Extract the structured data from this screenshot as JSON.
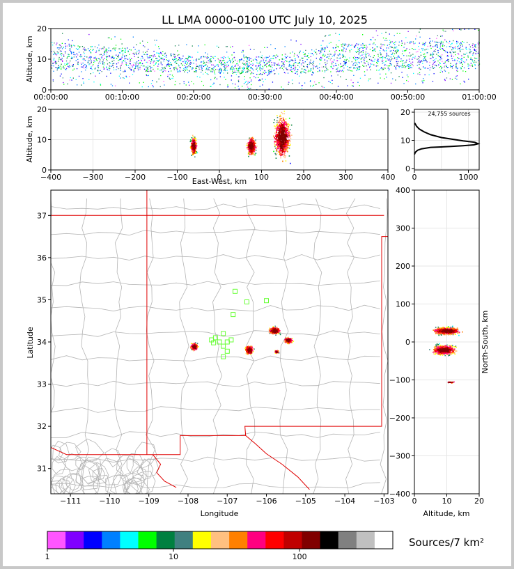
{
  "title": "LL LMA 0000-0100 UTC July 10, 2025",
  "colorbar": {
    "label": "Sources/7 km²",
    "ticks": [
      "1",
      "10",
      "100"
    ],
    "colors": [
      "#ff55ff",
      "#8000ff",
      "#0000ff",
      "#0080ff",
      "#00ffff",
      "#00ff00",
      "#008040",
      "#408080",
      "#ffff00",
      "#ffc080",
      "#ff8000",
      "#ff0080",
      "#ff0000",
      "#c00000",
      "#800000",
      "#000000",
      "#808080",
      "#c0c0c0",
      "#ffffff"
    ]
  },
  "chart_data": [
    {
      "type": "scatter",
      "name": "time-altitude",
      "ylabel": "Altitude, km",
      "xlabel": "",
      "xlim": [
        "00:00:00",
        "01:00:00"
      ],
      "ylim": [
        0,
        20
      ],
      "x_ticks": [
        "00:00:00",
        "00:10:00",
        "00:20:00",
        "00:30:00",
        "00:40:00",
        "00:50:00",
        "01:00:00"
      ],
      "y_ticks": [
        "0",
        "10",
        "20"
      ],
      "altitude_band_km": [
        {
          "t_min": 0,
          "low": 7,
          "high": 15
        },
        {
          "t_min": 10,
          "low": 6,
          "high": 14
        },
        {
          "t_min": 20,
          "low": 6,
          "high": 11
        },
        {
          "t_min": 30,
          "low": 5,
          "high": 11
        },
        {
          "t_min": 40,
          "low": 6,
          "high": 15
        },
        {
          "t_min": 50,
          "low": 7,
          "high": 16
        },
        {
          "t_min": 60,
          "low": 7,
          "high": 16
        }
      ]
    },
    {
      "type": "scatter",
      "name": "east-west-altitude",
      "xlabel": "East-West, km",
      "ylabel": "Altitude, km",
      "xlim": [
        -400,
        400
      ],
      "ylim": [
        0,
        20
      ],
      "x_ticks": [
        "−400",
        "−300",
        "−200",
        "−100",
        "0",
        "100",
        "200",
        "300",
        "400"
      ],
      "y_ticks": [
        "0",
        "10",
        "20"
      ],
      "clusters": [
        {
          "x": -62,
          "xw": 10,
          "ylow": 4,
          "yhigh": 12
        },
        {
          "x": 75,
          "xw": 16,
          "ylow": 4,
          "yhigh": 12
        },
        {
          "x": 148,
          "xw": 28,
          "ylow": 2,
          "yhigh": 20
        }
      ]
    },
    {
      "type": "line",
      "name": "altitude-histogram",
      "annotation": "24,755 sources",
      "xlim": [
        0,
        1200
      ],
      "ylim": [
        -0.5,
        21
      ],
      "x_ticks": [
        "0",
        "1000"
      ],
      "y_ticks": [
        "0",
        "10",
        "20"
      ],
      "x": [
        0,
        20,
        60,
        130,
        300,
        650,
        900,
        1100,
        1180,
        1120,
        900,
        500,
        300,
        180,
        90,
        40,
        10,
        0
      ],
      "y": [
        5,
        5.8,
        6.5,
        7,
        7.5,
        7.8,
        8.1,
        8.4,
        8.8,
        9.3,
        9.8,
        11,
        12,
        13,
        14,
        15,
        16,
        16
      ]
    },
    {
      "type": "scatter",
      "name": "plan-view-map",
      "xlabel": "Longitude",
      "ylabel": "Latitude",
      "xlim": [
        -111.5,
        -102.9
      ],
      "ylim": [
        30.4,
        37.6
      ],
      "x_ticks": [
        "−111",
        "−110",
        "−109",
        "−108",
        "−107",
        "−106",
        "−105",
        "−104",
        "−103"
      ],
      "y_ticks": [
        "31",
        "32",
        "33",
        "34",
        "35",
        "36",
        "37"
      ],
      "stations_lonlat": [
        [
          -106.8,
          35.2
        ],
        [
          -106.5,
          34.95
        ],
        [
          -106.0,
          34.98
        ],
        [
          -106.85,
          34.65
        ],
        [
          -107.4,
          34.05
        ],
        [
          -107.3,
          34.1
        ],
        [
          -107.1,
          34.2
        ],
        [
          -107.2,
          34.0
        ],
        [
          -107.0,
          34.0
        ],
        [
          -106.9,
          34.05
        ],
        [
          -107.1,
          33.9
        ],
        [
          -107.0,
          33.78
        ],
        [
          -107.1,
          33.65
        ],
        [
          -107.35,
          33.98
        ]
      ],
      "clusters": [
        {
          "lon": -107.85,
          "lat": 33.9,
          "w": 0.13,
          "h": 0.12
        },
        {
          "lon": -106.45,
          "lat": 33.82,
          "w": 0.15,
          "h": 0.15
        },
        {
          "lon": -105.8,
          "lat": 34.28,
          "w": 0.2,
          "h": 0.12
        },
        {
          "lon": -105.45,
          "lat": 34.05,
          "w": 0.15,
          "h": 0.1
        },
        {
          "lon": -105.75,
          "lat": 33.78,
          "w": 0.08,
          "h": 0.05
        }
      ]
    },
    {
      "type": "scatter",
      "name": "altitude-north-south",
      "xlabel": "Altitude, km",
      "ylabel": "North-South, km",
      "xlim": [
        0,
        20
      ],
      "ylim": [
        -400,
        400
      ],
      "x_ticks": [
        "0",
        "10",
        "20"
      ],
      "y_ticks": [
        "−400",
        "−300",
        "−200",
        "−100",
        "0",
        "100",
        "200",
        "300",
        "400"
      ],
      "clusters": [
        {
          "x": 10,
          "xw": 8,
          "y": 30,
          "yw": 15
        },
        {
          "x": 9,
          "xw": 7,
          "y": -20,
          "yw": 20
        },
        {
          "x": 11,
          "xw": 3,
          "y": -105,
          "yw": 3
        }
      ]
    }
  ]
}
